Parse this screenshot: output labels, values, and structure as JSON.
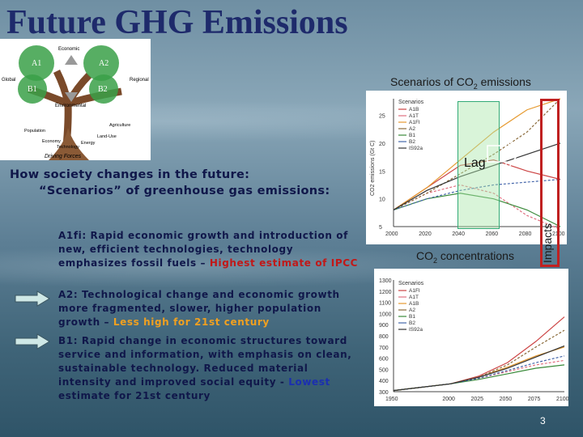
{
  "slide": {
    "title": "Future GHG Emissions",
    "page_number": "3"
  },
  "tree": {
    "labels": [
      "A1",
      "A2",
      "B1",
      "B2",
      "Economic",
      "Global",
      "Regional",
      "Environmental"
    ],
    "root_labels": [
      "Population",
      "Economy",
      "Technology",
      "Energy",
      "Land-Use",
      "Agriculture"
    ],
    "caption": "Driving Forces"
  },
  "scenarios_chart": {
    "heading": "Scenarios of CO",
    "heading_sub": "2",
    "heading_tail": " emissions",
    "lag_label": "Lag",
    "impacts_label": "Impacts"
  },
  "chart_data": [
    {
      "type": "line",
      "ylabel": "CO2 emissions (Gt C)",
      "x": [
        2000,
        2020,
        2040,
        2060,
        2080,
        2100
      ],
      "ylim": [
        5,
        28
      ],
      "legend_title": "Scenarios",
      "series": [
        {
          "name": "A1B",
          "values": [
            8,
            12,
            16,
            17,
            15,
            13.5
          ]
        },
        {
          "name": "A1T",
          "values": [
            8,
            11,
            12.5,
            11,
            7,
            4.5
          ]
        },
        {
          "name": "A1FI",
          "values": [
            8,
            12,
            17,
            22,
            26,
            28
          ]
        },
        {
          "name": "A2",
          "values": [
            8,
            11,
            14.5,
            18,
            22,
            28
          ]
        },
        {
          "name": "B1",
          "values": [
            8,
            10,
            11,
            10,
            8,
            5
          ]
        },
        {
          "name": "B2",
          "values": [
            8,
            10,
            11.5,
            12.5,
            13,
            13.5
          ]
        },
        {
          "name": "IS92a",
          "values": [
            8,
            11.5,
            14,
            16,
            18,
            20
          ]
        }
      ],
      "legend": "top-left"
    },
    {
      "type": "line",
      "title": "CO",
      "title_sub": "2",
      "title_tail": " concentrations",
      "x": [
        1950,
        2000,
        2025,
        2050,
        2075,
        2100
      ],
      "ylim": [
        300,
        1300
      ],
      "legend_title": "Scenarios",
      "series": [
        {
          "name": "A1FI",
          "values": [
            310,
            370,
            440,
            560,
            750,
            970
          ]
        },
        {
          "name": "A1T",
          "values": [
            310,
            370,
            420,
            480,
            540,
            580
          ]
        },
        {
          "name": "A1B",
          "values": [
            310,
            370,
            430,
            520,
            620,
            700
          ]
        },
        {
          "name": "A2",
          "values": [
            310,
            370,
            430,
            540,
            700,
            850
          ]
        },
        {
          "name": "B1",
          "values": [
            310,
            370,
            410,
            460,
            510,
            540
          ]
        },
        {
          "name": "B2",
          "values": [
            310,
            370,
            420,
            490,
            560,
            620
          ]
        },
        {
          "name": "IS92a",
          "values": [
            310,
            370,
            430,
            510,
            610,
            710
          ]
        }
      ],
      "legend": "top-left"
    }
  ],
  "text": {
    "heading_line1": "How society changes in the future:",
    "heading_line2": "“Scenarios” of greenhouse gas emissions:",
    "a1fi_text": "A1fi: Rapid economic growth and introduction of new, efficient technologies, technology emphasizes fossil fuels – ",
    "a1fi_highlight": "Highest estimate of IPCC",
    "a2_text": "A2: Technological change and economic growth more fragmented, slower, higher population growth – ",
    "a2_highlight": "Less high for 21st century",
    "b1_text": "B1: Rapid change in economic structures toward service and information, with emphasis on clean, sustainable technology. Reduced material intensity and improved social equity - ",
    "b1_highlight": "Lowest",
    "b1_tail": " estimate for 21st century"
  },
  "colors": {
    "title": "#1e2a6b",
    "body_text": "#10174a",
    "highlight_red": "#c11818",
    "highlight_orange": "#f0a020",
    "highlight_blue": "#1b2fb0",
    "impacts_border": "#c02020",
    "lag_fill": "#aae6aa"
  }
}
